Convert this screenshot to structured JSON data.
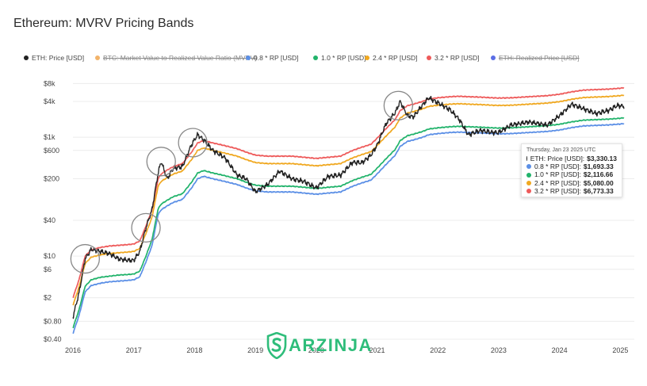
{
  "title": "Ethereum: MVRV Pricing Bands",
  "legend": [
    {
      "label": "ETH: Price [USD]",
      "color": "#222222",
      "hidden": false
    },
    {
      "label": "BTC: Market Value to Realized Value Ratio (MVRV)",
      "color": "#f2b36a",
      "hidden": true
    },
    {
      "label": "0.8 * RP [USD]",
      "color": "#5b8fe6",
      "hidden": false
    },
    {
      "label": "1.0 * RP [USD]",
      "color": "#21b36b",
      "hidden": false
    },
    {
      "label": "2.4 * RP [USD]",
      "color": "#f0a820",
      "hidden": false
    },
    {
      "label": "3.2 * RP [USD]",
      "color": "#ee5a5a",
      "hidden": false
    },
    {
      "label": "ETH: Realized Price [USD]",
      "color": "#5b6ee6",
      "hidden": true
    }
  ],
  "tooltip": {
    "date": "Thursday, Jan 23 2025 UTC",
    "rows": [
      {
        "label": "ETH: Price [USD]:",
        "value": "$3,330.13",
        "color": "#222222"
      },
      {
        "label": "0.8 * RP [USD]:",
        "value": "$1,693.33",
        "color": "#5b8fe6"
      },
      {
        "label": "1.0 * RP [USD]:",
        "value": "$2,116.66",
        "color": "#21b36b"
      },
      {
        "label": "2.4 * RP [USD]:",
        "value": "$5,080.00",
        "color": "#f0a820"
      },
      {
        "label": "3.2 * RP [USD]:",
        "value": "$6,773.33",
        "color": "#ee5a5a"
      }
    ]
  },
  "watermark": "ARZINJA",
  "chart_data": {
    "type": "line",
    "y_scale": "log",
    "ylim": [
      0.4,
      11000
    ],
    "xlim": [
      2016.0,
      2025.1
    ],
    "y_ticks": [
      {
        "value": 8000,
        "label": "$8k"
      },
      {
        "value": 4000,
        "label": "$4k"
      },
      {
        "value": 1000,
        "label": "$1k"
      },
      {
        "value": 600,
        "label": "$600"
      },
      {
        "value": 200,
        "label": "$200"
      },
      {
        "value": 40,
        "label": "$40"
      },
      {
        "value": 10,
        "label": "$10"
      },
      {
        "value": 6,
        "label": "$6"
      },
      {
        "value": 2,
        "label": "$2"
      },
      {
        "value": 0.8,
        "label": "$0.80"
      },
      {
        "value": 0.4,
        "label": "$0.40"
      }
    ],
    "x_ticks": [
      {
        "value": 2016,
        "label": "2016"
      },
      {
        "value": 2017,
        "label": "2017"
      },
      {
        "value": 2018,
        "label": "2018"
      },
      {
        "value": 2019,
        "label": "2019"
      },
      {
        "value": 2020,
        "label": "2020"
      },
      {
        "value": 2021,
        "label": "2021"
      },
      {
        "value": 2022,
        "label": "2022"
      },
      {
        "value": 2023,
        "label": "2023"
      },
      {
        "value": 2024,
        "label": "2024"
      },
      {
        "value": 2025,
        "label": "2025"
      }
    ],
    "grid": "horizontal",
    "highlight_circles": [
      2016.2,
      2017.2,
      2017.45,
      2017.97,
      2021.35
    ],
    "x": [
      2016.0,
      2016.1,
      2016.2,
      2016.3,
      2016.45,
      2016.6,
      2016.75,
      2016.9,
      2017.0,
      2017.1,
      2017.2,
      2017.3,
      2017.4,
      2017.45,
      2017.55,
      2017.65,
      2017.8,
      2017.95,
      2018.05,
      2018.15,
      2018.3,
      2018.5,
      2018.7,
      2018.85,
      2019.0,
      2019.2,
      2019.4,
      2019.6,
      2019.8,
      2020.0,
      2020.2,
      2020.4,
      2020.6,
      2020.75,
      2020.9,
      2021.0,
      2021.15,
      2021.3,
      2021.38,
      2021.5,
      2021.6,
      2021.75,
      2021.85,
      2022.0,
      2022.2,
      2022.35,
      2022.5,
      2022.7,
      2022.9,
      2023.0,
      2023.2,
      2023.5,
      2023.8,
      2024.0,
      2024.2,
      2024.4,
      2024.6,
      2024.8,
      2024.95,
      2025.06
    ],
    "series": [
      {
        "name": "ETH: Price [USD]",
        "color": "#222222",
        "values": [
          0.95,
          2.4,
          9.0,
          13,
          12,
          11,
          9,
          8.5,
          8.5,
          12,
          30,
          60,
          250,
          390,
          200,
          300,
          320,
          750,
          1100,
          900,
          600,
          450,
          230,
          200,
          120,
          160,
          270,
          200,
          180,
          140,
          220,
          230,
          380,
          370,
          500,
          730,
          1700,
          2600,
          4000,
          2300,
          2200,
          3500,
          4600,
          3800,
          2900,
          2000,
          1100,
          1300,
          1200,
          1200,
          1600,
          1800,
          1600,
          2300,
          3600,
          3000,
          2500,
          2800,
          3400,
          3330
        ]
      },
      {
        "name": "0.8 * RP [USD]",
        "color": "#5b8fe6",
        "values": [
          0.5,
          1.0,
          2.5,
          3.2,
          3.5,
          3.7,
          3.8,
          3.9,
          4.0,
          4.5,
          8,
          15,
          50,
          60,
          70,
          80,
          90,
          140,
          200,
          220,
          200,
          180,
          160,
          140,
          125,
          120,
          120,
          120,
          115,
          110,
          115,
          120,
          150,
          170,
          190,
          240,
          350,
          500,
          700,
          850,
          900,
          1000,
          1100,
          1150,
          1200,
          1220,
          1200,
          1180,
          1150,
          1140,
          1150,
          1200,
          1250,
          1320,
          1450,
          1550,
          1580,
          1610,
          1650,
          1690
        ]
      },
      {
        "name": "1.0 * RP [USD]",
        "color": "#21b36b",
        "values": [
          0.62,
          1.25,
          3.1,
          4.0,
          4.4,
          4.6,
          4.8,
          4.9,
          5.0,
          5.6,
          10,
          19,
          62,
          75,
          87,
          100,
          112,
          175,
          250,
          275,
          250,
          225,
          200,
          175,
          156,
          150,
          150,
          150,
          144,
          137,
          144,
          150,
          187,
          212,
          237,
          300,
          437,
          625,
          875,
          1062,
          1125,
          1250,
          1375,
          1437,
          1500,
          1525,
          1500,
          1475,
          1437,
          1425,
          1437,
          1500,
          1562,
          1650,
          1812,
          1937,
          1975,
          2012,
          2062,
          2116
        ]
      },
      {
        "name": "2.4 * RP [USD]",
        "color": "#f0a820",
        "values": [
          1.5,
          3.0,
          7.5,
          9.6,
          10.5,
          11.1,
          11.4,
          11.7,
          12,
          13.5,
          24,
          45,
          150,
          180,
          210,
          240,
          270,
          420,
          600,
          660,
          600,
          540,
          480,
          420,
          375,
          360,
          360,
          360,
          345,
          330,
          345,
          360,
          450,
          510,
          570,
          720,
          1050,
          1500,
          2100,
          2550,
          2700,
          3000,
          3300,
          3450,
          3600,
          3660,
          3600,
          3540,
          3450,
          3420,
          3450,
          3600,
          3750,
          3960,
          4350,
          4650,
          4740,
          4830,
          4950,
          5080
        ]
      },
      {
        "name": "3.2 * RP [USD]",
        "color": "#ee5a5a",
        "values": [
          2.0,
          4.0,
          10,
          12.8,
          14,
          14.8,
          15.2,
          15.6,
          16,
          18,
          32,
          60,
          200,
          240,
          280,
          320,
          360,
          560,
          800,
          880,
          800,
          720,
          640,
          560,
          500,
          480,
          480,
          480,
          460,
          440,
          460,
          480,
          600,
          680,
          760,
          960,
          1400,
          2000,
          2800,
          3400,
          3600,
          4000,
          4400,
          4600,
          4800,
          4880,
          4800,
          4720,
          4600,
          4560,
          4600,
          4800,
          5000,
          5280,
          5800,
          6200,
          6320,
          6440,
          6600,
          6773
        ]
      }
    ]
  }
}
